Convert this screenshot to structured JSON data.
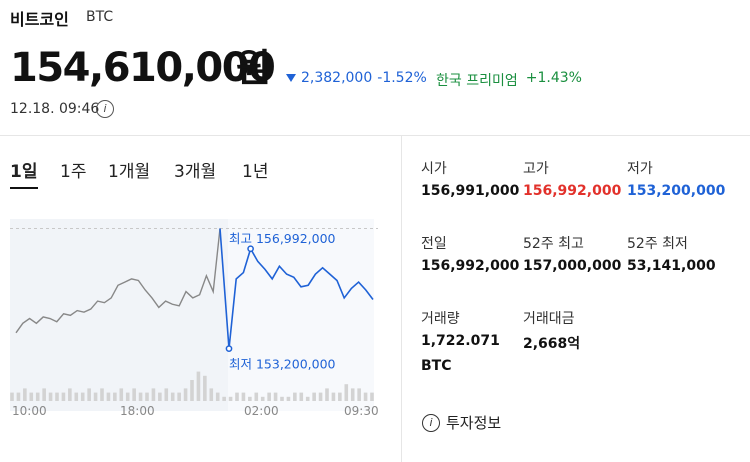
{
  "header": {
    "name": "비트코인",
    "ticker": "BTC",
    "price": "154,610,000",
    "price_unit": "원",
    "change_value": "2,382,000",
    "change_percent": "-1.52%",
    "premium_label": "한국 프리미엄",
    "premium_value": "+1.43%",
    "datetime": "12.18. 09:46",
    "info_icon": "info-circle-icon"
  },
  "tabs": [
    {
      "label": "1일",
      "active": true
    },
    {
      "label": "1주",
      "active": false
    },
    {
      "label": "1개월",
      "active": false
    },
    {
      "label": "3개월",
      "active": false
    },
    {
      "label": "1년",
      "active": false
    }
  ],
  "chart_data": {
    "type": "line",
    "x_ticks": [
      "10:00",
      "18:00",
      "02:00",
      "09:30"
    ],
    "high_label": "최고 156,992,000",
    "low_label": "최저 153,200,000",
    "ylim": [
      153000000,
      157100000
    ],
    "reference_line": 156991000,
    "series": [
      {
        "color": "#888888",
        "values": [
          153700000,
          154000000,
          154150000,
          154000000,
          154200000,
          154150000,
          154050000,
          154300000,
          154250000,
          154400000,
          154350000,
          154450000,
          154700000,
          154650000,
          154800000,
          155200000,
          155300000,
          155400000,
          155350000,
          155050000,
          154800000,
          154500000,
          154700000,
          154600000,
          154550000,
          155000000,
          154800000,
          154900000,
          155500000,
          155000000,
          156992000
        ]
      },
      {
        "color": "#1f62d6",
        "values": [
          153200000,
          155400000,
          155600000,
          156350000,
          155950000,
          155700000,
          155400000,
          155800000,
          155550000,
          155450000,
          155150000,
          155200000,
          155550000,
          155750000,
          155550000,
          155350000,
          154800000,
          155100000,
          155300000,
          155050000,
          154750000
        ]
      }
    ],
    "volume": [
      2,
      2,
      3,
      2,
      2,
      3,
      2,
      2,
      2,
      3,
      2,
      2,
      3,
      2,
      3,
      2,
      2,
      3,
      2,
      3,
      2,
      2,
      3,
      2,
      3,
      2,
      2,
      3,
      5,
      7,
      6,
      3,
      2,
      1,
      1,
      2,
      2,
      1,
      2,
      1,
      2,
      2,
      1,
      1,
      2,
      2,
      1,
      2,
      2,
      3,
      2,
      2,
      4,
      3,
      3,
      2,
      2
    ]
  },
  "stats": [
    {
      "label": "시가",
      "value": "156,991,000",
      "color": "default"
    },
    {
      "label": "고가",
      "value": "156,992,000",
      "color": "red"
    },
    {
      "label": "저가",
      "value": "153,200,000",
      "color": "blue"
    },
    {
      "label": "전일",
      "value": "156,992,000",
      "color": "default"
    },
    {
      "label": "52주 최고",
      "value": "157,000,000",
      "color": "default"
    },
    {
      "label": "52주 최저",
      "value": "53,141,000",
      "color": "default"
    },
    {
      "label": "거래량",
      "value": "1,722.071",
      "value2": "BTC",
      "color": "default"
    },
    {
      "label": "거래대금",
      "value": "2,668억",
      "color": "default"
    }
  ],
  "invest_info": {
    "label": "투자정보",
    "icon": "info-circle-icon"
  }
}
